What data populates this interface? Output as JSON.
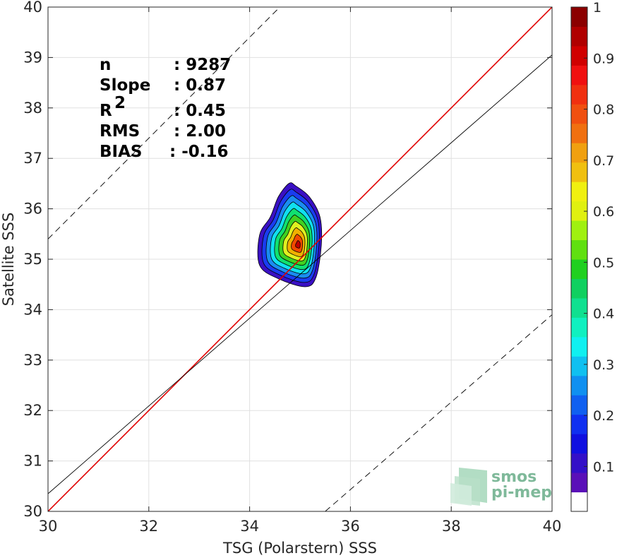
{
  "chart_data": {
    "type": "contour-density-scatter",
    "xlabel": "TSG (Polarstern) SSS",
    "ylabel": "Satellite SSS",
    "xlim": [
      30,
      40
    ],
    "ylim": [
      30,
      40
    ],
    "xticks": [
      30,
      32,
      34,
      36,
      38,
      40
    ],
    "yticks": [
      30,
      31,
      32,
      33,
      34,
      35,
      36,
      37,
      38,
      39,
      40
    ],
    "grid": true,
    "stats": [
      {
        "name": "n",
        "value": ": 9287"
      },
      {
        "name": "Slope",
        "value": ": 0.87"
      },
      {
        "name": "R",
        "sup": "2",
        "value": ": 0.45"
      },
      {
        "name": "RMS",
        "value": ": 2.00"
      },
      {
        "name": "BIAS",
        "value": ": -0.16"
      }
    ],
    "lines": [
      {
        "name": "identity",
        "points": [
          [
            30,
            30
          ],
          [
            40,
            40
          ]
        ],
        "color": "#e00000",
        "style": "solid"
      },
      {
        "name": "regression",
        "points": [
          [
            30,
            30.35
          ],
          [
            40,
            39.05
          ]
        ],
        "color": "#000000",
        "style": "solid"
      },
      {
        "name": "upper-bound",
        "points": [
          [
            30,
            35.4
          ],
          [
            34.6,
            40
          ]
        ],
        "color": "#000000",
        "style": "dashed"
      },
      {
        "name": "lower-bound",
        "points": [
          [
            35.5,
            30
          ],
          [
            40,
            33.9
          ]
        ],
        "color": "#000000",
        "style": "dashed"
      }
    ],
    "density_peak": {
      "x": 34.97,
      "y": 35.28
    },
    "contour_levels": [
      0.05,
      0.15,
      0.25,
      0.35,
      0.45,
      0.55,
      0.65,
      0.75,
      0.85,
      0.95
    ],
    "contour_fills": [
      "#3a10c4",
      "#1a3cf0",
      "#1a8cf0",
      "#10e0f0",
      "#10e070",
      "#40d020",
      "#e0f020",
      "#f0b000",
      "#f04a00",
      "#c00000"
    ],
    "colorbar": {
      "ticks": [
        "0.1",
        "0.2",
        "0.3",
        "0.4",
        "0.5",
        "0.6",
        "0.7",
        "0.8",
        "0.9",
        "1"
      ],
      "tick_values": [
        0.1,
        0.2,
        0.3,
        0.4,
        0.5,
        0.6,
        0.7,
        0.8,
        0.9,
        1.0
      ],
      "colors": [
        "#ffffff",
        "#5a10b8",
        "#3410c8",
        "#1010e0",
        "#1030f0",
        "#1060f0",
        "#1090f0",
        "#10c0f0",
        "#10f0f0",
        "#10f0c0",
        "#10e090",
        "#10d060",
        "#20d020",
        "#60e010",
        "#a0f010",
        "#e0f010",
        "#f0f010",
        "#f0c010",
        "#f0a010",
        "#f07010",
        "#f05010",
        "#f03010",
        "#f01010",
        "#d00000",
        "#b00000",
        "#8b0000"
      ]
    }
  },
  "logo": {
    "line1": "smos",
    "line2": "pi-mep"
  }
}
